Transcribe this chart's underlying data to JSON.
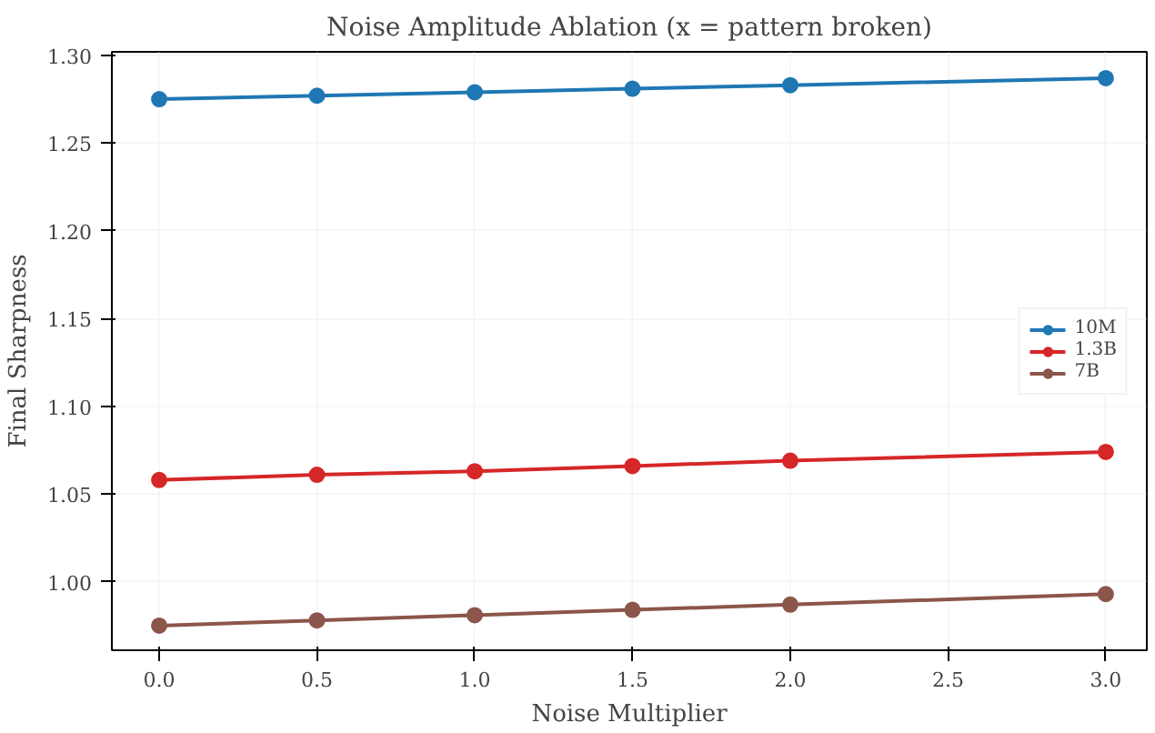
{
  "chart_data": {
    "type": "line",
    "title": "Noise Amplitude Ablation (x = pattern broken)",
    "xlabel": "Noise Multiplier",
    "ylabel": "Final Sharpness",
    "x": [
      0.0,
      0.5,
      1.0,
      1.5,
      2.0,
      3.0
    ],
    "series": [
      {
        "name": "10M",
        "color": "#1f77b4",
        "values": [
          1.275,
          1.277,
          1.279,
          1.281,
          1.283,
          1.287
        ]
      },
      {
        "name": "1.3B",
        "color": "#d62728",
        "values": [
          1.058,
          1.061,
          1.063,
          1.066,
          1.069,
          1.074
        ]
      },
      {
        "name": "7B",
        "color": "#8c564b",
        "values": [
          0.975,
          0.978,
          0.981,
          0.984,
          0.987,
          0.993
        ]
      }
    ],
    "xlim": [
      -0.15,
      3.13
    ],
    "ylim": [
      0.961,
      1.302
    ],
    "xticks": [
      {
        "value": 0,
        "label": "0.0"
      },
      {
        "value": 0.5,
        "label": "0.5"
      },
      {
        "value": 1,
        "label": "1.0"
      },
      {
        "value": 1.5,
        "label": "1.5"
      },
      {
        "value": 2,
        "label": "2.0"
      },
      {
        "value": 2.5,
        "label": "2.5"
      },
      {
        "value": 3,
        "label": "3.0"
      }
    ],
    "yticks": [
      {
        "value": 1.0,
        "label": "1.00"
      },
      {
        "value": 1.05,
        "label": "1.05"
      },
      {
        "value": 1.1,
        "label": "1.10"
      },
      {
        "value": 1.15,
        "label": "1.15"
      },
      {
        "value": 1.2,
        "label": "1.20"
      },
      {
        "value": 1.25,
        "label": "1.25"
      },
      {
        "value": 1.3,
        "label": "1.30"
      }
    ],
    "grid": true,
    "legend": "right",
    "marker": "circle",
    "line_style": "solid"
  }
}
